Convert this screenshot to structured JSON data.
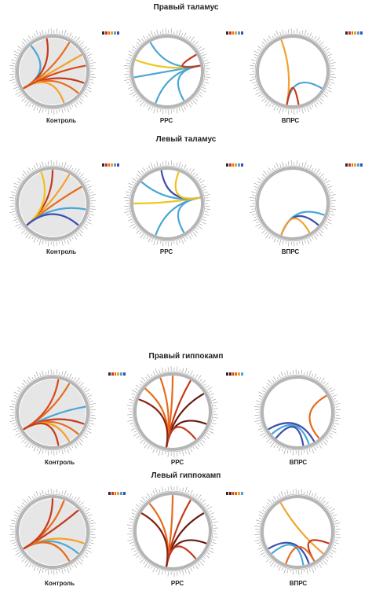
{
  "panels": [
    {
      "id": "top",
      "groups": [
        {
          "title": "Правый таламус",
          "diagrams": [
            {
              "label": "Контроль",
              "shaded": true,
              "palette": [
                "#2b2b2b",
                "#c43a1c",
                "#e86a1a",
                "#f2a22a",
                "#4aa6d6",
                "#3b4fb0"
              ],
              "chords": [
                [
                  "#c43a1c",
                  20,
                  150
                ],
                [
                  "#e86a1a",
                  40,
                  150
                ],
                [
                  "#f2a22a",
                  70,
                  150
                ],
                [
                  "#4aa6d6",
                  230,
                  150
                ],
                [
                  "#c43a1c",
                  260,
                  150
                ],
                [
                  "#e86a1a",
                  300,
                  150
                ],
                [
                  "#f2a22a",
                  330,
                  150
                ],
                [
                  "#d94a1a",
                  350,
                  150
                ]
              ]
            },
            {
              "label": "РРС",
              "shaded": false,
              "palette": [
                "#2b2b2b",
                "#c43a1c",
                "#e86a1a",
                "#f2a22a",
                "#4aa6d6",
                "#3b4fb0"
              ],
              "chords": [
                [
                  "#4aa6d6",
                  350,
                  60
                ],
                [
                  "#4aa6d6",
                  350,
                  110
                ],
                [
                  "#4aa6d6",
                  350,
                  170
                ],
                [
                  "#f2c21a",
                  350,
                  200
                ],
                [
                  "#4aa6d6",
                  350,
                  240
                ],
                [
                  "#c43a1c",
                  350,
                  330
                ]
              ]
            },
            {
              "label": "ВПРС",
              "shaded": false,
              "palette": [
                "#2b2b2b",
                "#c43a1c",
                "#e86a1a",
                "#f2a22a",
                "#4aa6d6",
                "#3b4fb0"
              ],
              "chords": [
                [
                  "#4aa6d6",
                  30,
                  100
                ],
                [
                  "#f2a22a",
                  250,
                  100
                ],
                [
                  "#c43a1c",
                  80,
                  100
                ]
              ]
            }
          ]
        },
        {
          "title": "Левый таламус",
          "diagrams": [
            {
              "label": "Контроль",
              "shaded": true,
              "palette": [
                "#2b2b2b",
                "#c43a1c",
                "#e86a1a",
                "#f2a22a",
                "#4aa6d6",
                "#3b4fb0"
              ],
              "chords": [
                [
                  "#e86a1a",
                  330,
                  140
                ],
                [
                  "#f2a22a",
                  300,
                  140
                ],
                [
                  "#c43a1c",
                  270,
                  140
                ],
                [
                  "#f2c21a",
                  250,
                  140
                ],
                [
                  "#4aa6d6",
                  10,
                  140
                ],
                [
                  "#3b4fb0",
                  40,
                  140
                ]
              ]
            },
            {
              "label": "РРС",
              "shaded": false,
              "palette": [
                "#2b2b2b",
                "#c43a1c",
                "#e86a1a",
                "#f2a22a",
                "#4aa6d6",
                "#3b4fb0"
              ],
              "chords": [
                [
                  "#4aa6d6",
                  350,
                  60
                ],
                [
                  "#4aa6d6",
                  350,
                  110
                ],
                [
                  "#f2c21a",
                  350,
                  180
                ],
                [
                  "#4aa6d6",
                  350,
                  220
                ],
                [
                  "#3b4fb0",
                  350,
                  260
                ],
                [
                  "#f2c21a",
                  350,
                  290
                ]
              ]
            },
            {
              "label": "ВПРС",
              "shaded": false,
              "palette": [
                "#2b2b2b",
                "#c43a1c",
                "#e86a1a",
                "#f2a22a",
                "#4aa6d6",
                "#3b4fb0"
              ],
              "chords": [
                [
                  "#4aa6d6",
                  20,
                  110
                ],
                [
                  "#3b4fb0",
                  40,
                  110
                ],
                [
                  "#f2a22a",
                  60,
                  110
                ]
              ]
            }
          ]
        }
      ]
    },
    {
      "id": "bottom",
      "groups": [
        {
          "title": "Правый гиппокамп",
          "diagrams": [
            {
              "label": "Контроль",
              "shaded": true,
              "palette": [
                "#2b2b2b",
                "#c43a1c",
                "#e86a1a",
                "#f2a22a",
                "#4aa6d6",
                "#3b4fb0"
              ],
              "chords": [
                [
                  "#4aa6d6",
                  350,
                  150
                ],
                [
                  "#e86a1a",
                  300,
                  150
                ],
                [
                  "#c43a1c",
                  20,
                  150
                ],
                [
                  "#e86a1a",
                  40,
                  150
                ],
                [
                  "#f2a22a",
                  60,
                  150
                ],
                [
                  "#d94a1a",
                  280,
                  150
                ],
                [
                  "#c43a1c",
                  80,
                  150
                ]
              ]
            },
            {
              "label": "РРС",
              "shaded": false,
              "palette": [
                "#2b2b2b",
                "#6b1a10",
                "#c43a1c",
                "#e86a1a",
                "#f2a22a",
                "#4aa6d6"
              ],
              "chords": [
                [
                  "#6b1a10",
                  100,
                  330
                ],
                [
                  "#c43a1c",
                  100,
                  300
                ],
                [
                  "#e86a1a",
                  100,
                  270
                ],
                [
                  "#e86a1a",
                  100,
                  250
                ],
                [
                  "#6b1a10",
                  100,
                  20
                ],
                [
                  "#c43a1c",
                  100,
                  50
                ],
                [
                  "#e86a1a",
                  100,
                  220
                ],
                [
                  "#8a2212",
                  100,
                  200
                ]
              ]
            },
            {
              "label": "ВПРС",
              "shaded": false,
              "palette": [
                "#2b2b2b",
                "#c43a1c",
                "#e86a1a",
                "#f2a22a",
                "#4aa6d6",
                "#3b4fb0"
              ],
              "chords": [
                [
                  "#e86a1a",
                  330,
                  50
                ],
                [
                  "#3b4fb0",
                  60,
                  150
                ],
                [
                  "#4aa6d6",
                  70,
                  140
                ],
                [
                  "#3b4fb0",
                  80,
                  130
                ]
              ]
            }
          ]
        },
        {
          "title": "Левый гиппокамп",
          "diagrams": [
            {
              "label": "Контроль",
              "shaded": true,
              "palette": [
                "#2b2b2b",
                "#c43a1c",
                "#e86a1a",
                "#f2a22a",
                "#4aa6d6",
                "#3b4fb0"
              ],
              "chords": [
                [
                  "#c43a1c",
                  320,
                  150
                ],
                [
                  "#e86a1a",
                  290,
                  150
                ],
                [
                  "#f2a22a",
                  20,
                  150
                ],
                [
                  "#4aa6d6",
                  40,
                  150
                ],
                [
                  "#e86a1a",
                  60,
                  150
                ],
                [
                  "#c43a1c",
                  270,
                  150
                ]
              ]
            },
            {
              "label": "РРС",
              "shaded": false,
              "palette": [
                "#2b2b2b",
                "#6b1a10",
                "#c43a1c",
                "#e86a1a",
                "#f2a22a",
                "#4aa6d6"
              ],
              "chords": [
                [
                  "#6b1a10",
                  100,
                  330
                ],
                [
                  "#c43a1c",
                  100,
                  300
                ],
                [
                  "#e86a1a",
                  100,
                  270
                ],
                [
                  "#6b1a10",
                  100,
                  20
                ],
                [
                  "#c43a1c",
                  100,
                  50
                ],
                [
                  "#e86a1a",
                  100,
                  230
                ],
                [
                  "#8a2212",
                  100,
                  210
                ]
              ]
            },
            {
              "label": "ВПРС",
              "shaded": false,
              "palette": [
                "#2b2b2b",
                "#c43a1c",
                "#e86a1a",
                "#f2a22a",
                "#4aa6d6",
                "#3b4fb0"
              ],
              "chords": [
                [
                  "#f2a22a",
                  40,
                  240
                ],
                [
                  "#c43a1c",
                  20,
                  60
                ],
                [
                  "#3b4fb0",
                  70,
                  150
                ],
                [
                  "#4aa6d6",
                  80,
                  140
                ],
                [
                  "#e86a1a",
                  60,
                  110
                ]
              ]
            }
          ]
        }
      ]
    }
  ]
}
